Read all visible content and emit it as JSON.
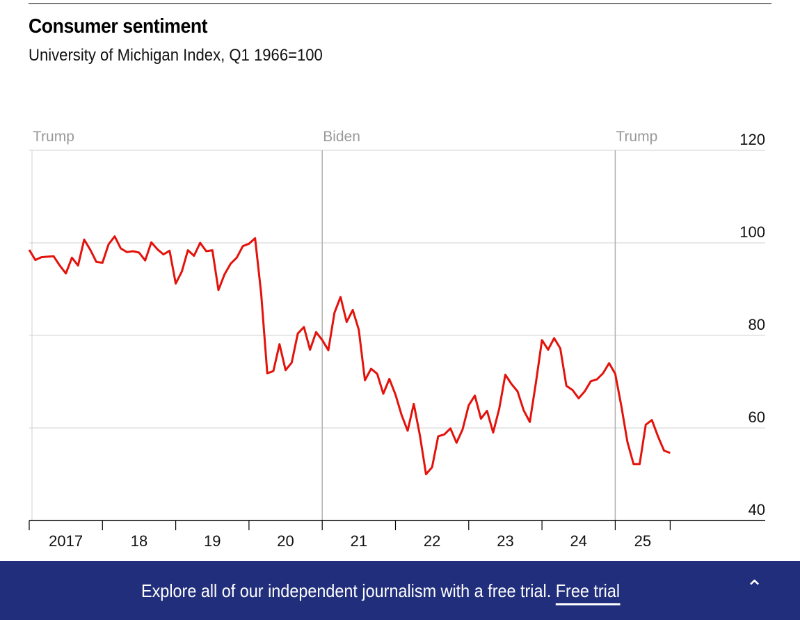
{
  "chart_data": {
    "type": "line",
    "title": "Consumer sentiment",
    "subtitle": "University of Michigan Index, Q1 1966=100",
    "start": "2017-01",
    "frequency": "monthly",
    "ylim": [
      40,
      120
    ],
    "yticks": [
      "120",
      "100",
      "80",
      "60",
      "40"
    ],
    "xticks": [
      "2017",
      "18",
      "19",
      "20",
      "21",
      "22",
      "23",
      "24",
      "25"
    ],
    "grid": true,
    "line_color": "#e3120b",
    "annotations": [
      {
        "label": "Trump",
        "date": "2017-01"
      },
      {
        "label": "Biden",
        "date": "2021-01"
      },
      {
        "label": "Trump",
        "date": "2025-01"
      }
    ],
    "series": [
      {
        "values": [
          98.5,
          96.3,
          96.9,
          97.0,
          97.1,
          95.1,
          93.4,
          96.8,
          95.1,
          100.7,
          98.5,
          95.9,
          95.7,
          99.7,
          101.4,
          98.8,
          98.0,
          98.2,
          97.9,
          96.2,
          100.1,
          98.6,
          97.5,
          98.3,
          91.2,
          93.8,
          98.4,
          97.2,
          100.0,
          98.2,
          98.4,
          89.8,
          93.2,
          95.5,
          96.8,
          99.3,
          99.8,
          101.0,
          89.1,
          71.8,
          72.3,
          78.1,
          72.5,
          74.1,
          80.4,
          81.8,
          76.9,
          80.7,
          79.0,
          76.8,
          84.9,
          88.3,
          82.9,
          85.5,
          81.2,
          70.3,
          72.8,
          71.7,
          67.4,
          70.6,
          67.2,
          62.8,
          59.4,
          65.2,
          58.4,
          50.0,
          51.5,
          58.2,
          58.6,
          59.9,
          56.8,
          59.7,
          64.9,
          67.0,
          62.0,
          63.7,
          59.0,
          64.2,
          71.5,
          69.5,
          67.9,
          63.8,
          61.3,
          69.7,
          79.0,
          76.9,
          79.4,
          77.2,
          69.1,
          68.2,
          66.4,
          67.9,
          70.1,
          70.5,
          71.8,
          74.0,
          71.7,
          64.7,
          57.0,
          52.2,
          52.2,
          60.7,
          61.7,
          58.2,
          55.1,
          54.6
        ]
      }
    ]
  },
  "banner": {
    "text": "Explore all of our independent journalism with a free trial.",
    "link": "Free trial",
    "icon": "chevron-up-icon"
  }
}
